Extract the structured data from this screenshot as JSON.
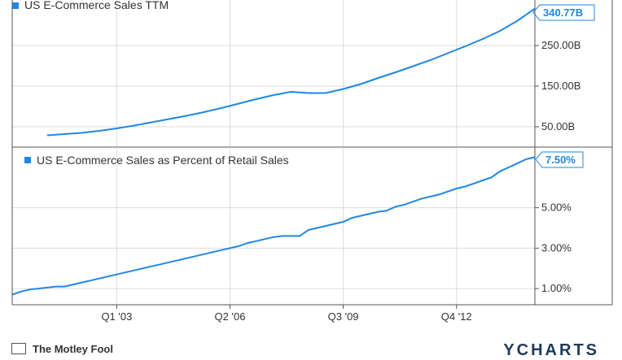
{
  "chart_data": [
    {
      "type": "line",
      "legend": "US E-Commerce Sales TTM",
      "legend_placement": "top-left",
      "color": "#1e88e5",
      "y_unit": "B",
      "ylim": [
        0,
        362
      ],
      "ytick_labels": [
        "250.00B",
        "150.00B",
        "50.00B"
      ],
      "yticks": [
        250,
        150,
        50
      ],
      "last_value_label": "340.77B",
      "grid": true,
      "x": [
        2001.0,
        2001.5,
        2002.0,
        2002.5,
        2003.0,
        2003.5,
        2004.0,
        2004.5,
        2005.0,
        2005.5,
        2006.0,
        2006.5,
        2007.0,
        2007.5,
        2008.0,
        2008.5,
        2009.0,
        2009.5,
        2010.0,
        2010.5,
        2011.0,
        2011.5,
        2012.0,
        2012.5,
        2013.0,
        2013.5,
        2014.0,
        2014.5,
        2015.0
      ],
      "y": [
        29,
        32,
        35,
        40,
        46,
        53,
        61,
        69,
        77,
        86,
        96,
        107,
        118,
        128,
        136,
        133,
        133,
        143,
        155,
        170,
        184,
        199,
        214,
        231,
        248,
        266,
        286,
        311,
        340.77
      ]
    },
    {
      "type": "line",
      "legend": "US E-Commerce Sales as Percent of Retail Sales",
      "legend_placement": "top-left",
      "color": "#1e88e5",
      "y_unit": "%",
      "ylim": [
        0.2,
        8.0
      ],
      "ytick_labels": [
        "5.00%",
        "3.00%",
        "1.00%"
      ],
      "yticks": [
        5,
        3,
        1
      ],
      "last_value_label": "7.50%",
      "grid": true,
      "x": [
        2000.0,
        2000.25,
        2000.5,
        2000.75,
        2001.0,
        2001.25,
        2001.5,
        2001.75,
        2002.0,
        2002.25,
        2002.5,
        2002.75,
        2003.0,
        2003.25,
        2003.5,
        2003.75,
        2004.0,
        2004.25,
        2004.5,
        2004.75,
        2005.0,
        2005.25,
        2005.5,
        2005.75,
        2006.0,
        2006.25,
        2006.5,
        2006.75,
        2007.0,
        2007.25,
        2007.5,
        2007.75,
        2008.0,
        2008.25,
        2008.5,
        2008.75,
        2009.0,
        2009.25,
        2009.5,
        2009.75,
        2010.0,
        2010.25,
        2010.5,
        2010.75,
        2011.0,
        2011.25,
        2011.5,
        2011.75,
        2012.0,
        2012.25,
        2012.5,
        2012.75,
        2013.0,
        2013.25,
        2013.5,
        2013.75,
        2014.0,
        2014.25,
        2014.5,
        2014.75,
        2015.0
      ],
      "y": [
        0.7,
        0.85,
        0.95,
        1.0,
        1.05,
        1.1,
        1.1,
        1.2,
        1.3,
        1.4,
        1.5,
        1.6,
        1.7,
        1.8,
        1.9,
        2.0,
        2.1,
        2.2,
        2.3,
        2.4,
        2.5,
        2.6,
        2.7,
        2.8,
        2.9,
        3.0,
        3.1,
        3.25,
        3.35,
        3.45,
        3.55,
        3.6,
        3.6,
        3.6,
        3.9,
        4.0,
        4.1,
        4.2,
        4.3,
        4.5,
        4.6,
        4.7,
        4.8,
        4.85,
        5.05,
        5.15,
        5.3,
        5.45,
        5.55,
        5.65,
        5.8,
        5.95,
        6.05,
        6.2,
        6.35,
        6.5,
        6.8,
        7.0,
        7.2,
        7.4,
        7.5
      ]
    }
  ],
  "x_axis": {
    "tick_labels": [
      "Q1 '03",
      "Q2 '06",
      "Q3 '09",
      "Q4 '12"
    ],
    "tick_values": [
      2003.0,
      2006.25,
      2009.5,
      2012.75
    ],
    "xlim": [
      2000.0,
      2015.0
    ]
  },
  "footer": {
    "left_text": "The Motley Fool",
    "right_text": "YCHARTS"
  }
}
